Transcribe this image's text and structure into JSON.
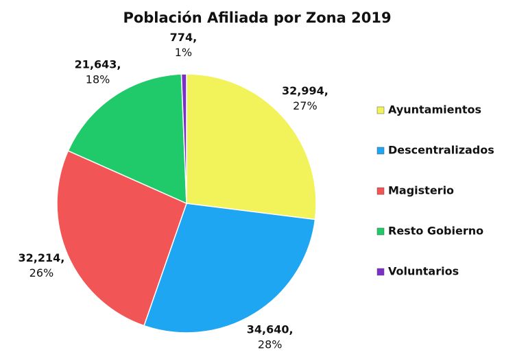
{
  "chart_data": {
    "type": "pie",
    "title": "Población Afiliada por Zona 2019",
    "categories": [
      "Ayuntamientos",
      "Descentralizados",
      "Magisterio",
      "Resto Gobierno",
      "Voluntarios"
    ],
    "values": [
      32994,
      34640,
      32214,
      21643,
      774
    ],
    "value_labels": [
      "32,994,",
      "34,640,",
      "32,214,",
      "21,643,",
      "774,"
    ],
    "percent_labels": [
      "27%",
      "28%",
      "26%",
      "18%",
      "1%"
    ],
    "colors": [
      "#f2f25a",
      "#1ea6f2",
      "#f25555",
      "#20c96a",
      "#7a30c8"
    ],
    "legend": "right"
  }
}
